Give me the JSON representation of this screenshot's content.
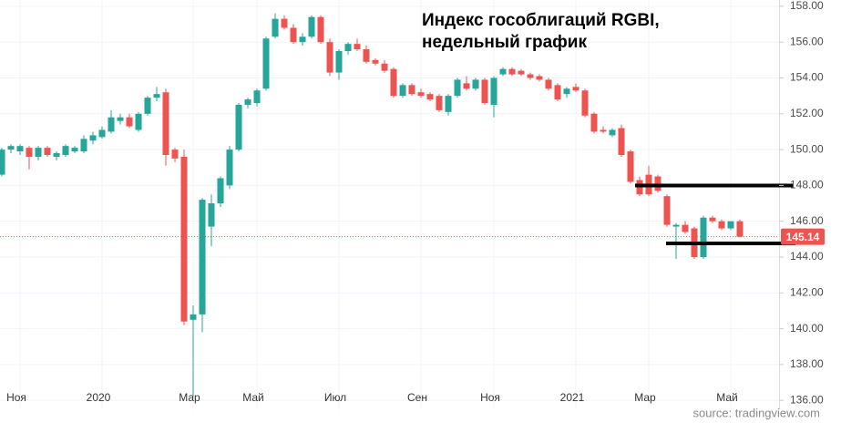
{
  "chart_data": {
    "type": "candlestick",
    "title": [
      "Индекс гособлигаций RGBI,",
      "недельный график"
    ],
    "source": "source: tradingview.com",
    "categories": [
      null,
      null,
      "Ноя",
      null,
      null,
      null,
      null,
      null,
      null,
      null,
      null,
      "2020",
      null,
      null,
      null,
      null,
      null,
      null,
      null,
      null,
      null,
      "Мар",
      null,
      null,
      null,
      null,
      null,
      null,
      "Май",
      null,
      null,
      null,
      null,
      null,
      null,
      null,
      null,
      "Июл",
      null,
      null,
      null,
      null,
      null,
      null,
      null,
      null,
      "Сен",
      null,
      null,
      null,
      null,
      null,
      null,
      null,
      "Ноя",
      null,
      null,
      null,
      null,
      null,
      null,
      null,
      null,
      "2021",
      null,
      null,
      null,
      null,
      null,
      null,
      null,
      "Мар",
      null,
      null,
      null,
      null,
      null,
      null,
      null,
      null,
      "Май",
      null
    ],
    "open": [
      148.6,
      150.0,
      149.9,
      150.1,
      149.6,
      150.1,
      149.6,
      149.7,
      149.9,
      149.9,
      150.5,
      150.7,
      151.0,
      151.6,
      151.8,
      151.1,
      152.0,
      152.9,
      153.2,
      150.0,
      149.6,
      140.5,
      140.8,
      145.7,
      147.0,
      148.0,
      150.0,
      152.5,
      152.6,
      153.4,
      156.3,
      157.3,
      156.8,
      156.0,
      156.3,
      157.4,
      156.0,
      154.3,
      155.5,
      155.9,
      155.6,
      155.0,
      154.8,
      154.5,
      153.0,
      153.6,
      153.2,
      153.1,
      153.0,
      152.1,
      153.0,
      153.7,
      153.4,
      153.9,
      152.5,
      154.2,
      154.5,
      154.4,
      154.2,
      154.1,
      153.9,
      153.6,
      153.1,
      153.5,
      153.3,
      152.0,
      151.1,
      150.8,
      151.2,
      149.9,
      148.3,
      148.6,
      148.5,
      147.4,
      145.7,
      145.8,
      145.6,
      144.0,
      146.2,
      146.0,
      145.6,
      146.0
    ],
    "high": [
      150.1,
      150.3,
      150.3,
      150.2,
      150.2,
      150.2,
      149.9,
      150.3,
      150.2,
      150.8,
      151.0,
      151.3,
      152.2,
      152.0,
      152.0,
      152.1,
      153.0,
      153.5,
      153.4,
      150.1,
      150.0,
      141.3,
      147.3,
      147.5,
      148.5,
      150.2,
      152.6,
      152.9,
      153.4,
      156.3,
      157.6,
      157.5,
      157.0,
      156.5,
      157.5,
      157.5,
      156.2,
      155.6,
      156.0,
      156.2,
      155.8,
      155.1,
      155.0,
      154.6,
      153.7,
      153.7,
      153.4,
      153.2,
      153.1,
      153.1,
      154.0,
      154.1,
      154.0,
      154.0,
      154.1,
      154.6,
      154.6,
      154.5,
      154.3,
      154.2,
      154.0,
      153.7,
      153.5,
      153.7,
      153.4,
      152.1,
      151.3,
      151.2,
      151.4,
      150.0,
      148.5,
      149.1,
      148.6,
      147.5,
      145.9,
      146.0,
      145.7,
      146.3,
      146.3,
      146.1,
      146.0,
      146.1
    ],
    "low": [
      148.5,
      149.8,
      149.7,
      148.9,
      149.4,
      149.6,
      149.4,
      149.6,
      149.8,
      149.8,
      150.3,
      150.6,
      150.9,
      151.4,
      151.2,
      151.0,
      151.9,
      152.7,
      149.1,
      149.3,
      140.2,
      136.2,
      139.8,
      144.6,
      146.8,
      147.8,
      149.9,
      152.3,
      152.4,
      153.3,
      156.2,
      156.7,
      155.9,
      155.8,
      156.2,
      155.9,
      154.1,
      153.9,
      155.3,
      155.5,
      154.8,
      154.7,
      154.3,
      152.9,
      152.9,
      153.0,
      152.9,
      152.7,
      152.1,
      151.9,
      152.9,
      153.3,
      153.3,
      152.5,
      151.8,
      154.1,
      154.1,
      154.1,
      153.9,
      153.8,
      153.3,
      152.7,
      152.9,
      153.2,
      151.8,
      150.9,
      150.9,
      150.7,
      149.6,
      148.1,
      147.4,
      147.4,
      147.6,
      145.7,
      143.9,
      145.3,
      143.9,
      143.9,
      145.9,
      145.5,
      145.5,
      145.1
    ],
    "close": [
      150.0,
      150.2,
      150.2,
      149.6,
      150.1,
      149.7,
      149.8,
      150.2,
      150.1,
      150.6,
      150.8,
      151.1,
      151.8,
      151.8,
      151.3,
      152.0,
      152.9,
      153.1,
      149.7,
      149.5,
      140.4,
      140.8,
      147.2,
      147.0,
      148.4,
      150.0,
      152.5,
      152.8,
      153.3,
      156.2,
      157.3,
      156.8,
      156.0,
      156.3,
      157.4,
      156.0,
      154.3,
      155.5,
      155.9,
      155.6,
      154.9,
      154.8,
      154.4,
      153.0,
      153.6,
      153.1,
      153.0,
      152.8,
      152.2,
      153.0,
      153.9,
      153.4,
      153.9,
      152.6,
      154.0,
      154.5,
      154.2,
      154.2,
      154.0,
      153.9,
      153.4,
      152.8,
      153.4,
      153.3,
      151.9,
      151.0,
      151.0,
      151.1,
      149.7,
      148.2,
      147.5,
      147.5,
      147.7,
      145.8,
      145.8,
      145.4,
      144.0,
      146.2,
      146.0,
      145.6,
      146.0,
      145.14
    ],
    "up_color": "#26a69a",
    "down_color": "#ef5350",
    "last_price": {
      "value": 145.14,
      "label": "145.14"
    },
    "ylim": [
      135.5,
      158.3
    ],
    "yticks": [
      {
        "value": 136,
        "label": "136.00"
      },
      {
        "value": 138,
        "label": "138.00"
      },
      {
        "value": 140,
        "label": "140.00"
      },
      {
        "value": 142,
        "label": "142.00"
      },
      {
        "value": 144,
        "label": "144.00"
      },
      {
        "value": 146,
        "label": "146.00"
      },
      {
        "value": 148,
        "label": "148.00"
      },
      {
        "value": 150,
        "label": "150.00"
      },
      {
        "value": 152,
        "label": "152.00"
      },
      {
        "value": 154,
        "label": "154.00"
      },
      {
        "value": 156,
        "label": "156.00"
      },
      {
        "value": 158,
        "label": "158.00"
      }
    ],
    "grid": true
  }
}
